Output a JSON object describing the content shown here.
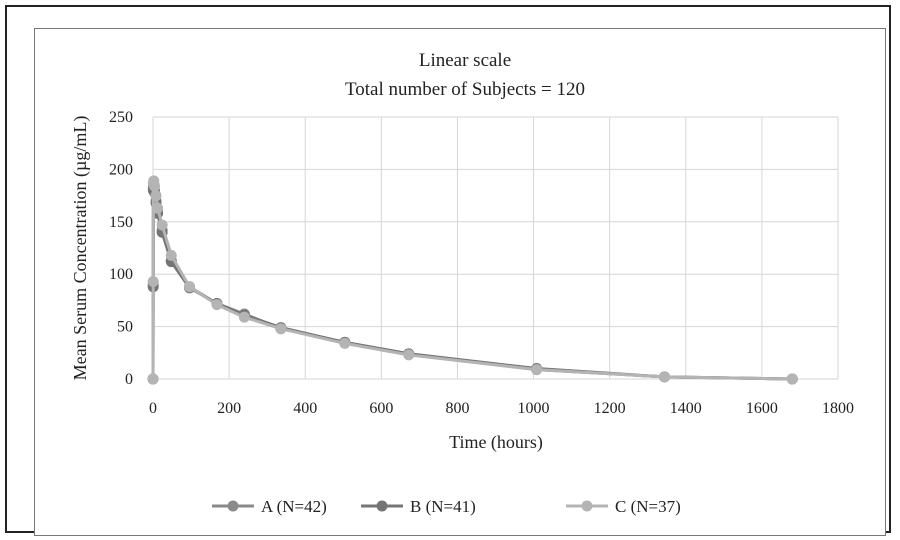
{
  "chart_data": {
    "type": "line",
    "title": "Linear scale",
    "subtitle": "Total number of Subjects = 120",
    "xlabel": "Time (hours)",
    "ylabel": "Mean Serum Concentration (µg/mL)",
    "xlim": [
      0,
      1800
    ],
    "ylim": [
      0,
      250
    ],
    "x_ticks": [
      0,
      200,
      400,
      600,
      800,
      1000,
      1200,
      1400,
      1600,
      1800
    ],
    "y_ticks": [
      0,
      50,
      100,
      150,
      200,
      250
    ],
    "grid": "vertical and horizontal",
    "legend_position": "bottom",
    "series": [
      {
        "name": "A (N=42)",
        "color": "#8a8a8a",
        "x": [
          0,
          0.5,
          1,
          2,
          4,
          8,
          12,
          24,
          48,
          96,
          168,
          240,
          336,
          504,
          672,
          1008,
          1344,
          1680
        ],
        "y": [
          0,
          90,
          182,
          186,
          180,
          170,
          160,
          142,
          113,
          88,
          72,
          62,
          48,
          35,
          24,
          9,
          2,
          0
        ]
      },
      {
        "name": "B (N=41)",
        "color": "#757575",
        "x": [
          0,
          0.5,
          1,
          2,
          4,
          8,
          12,
          24,
          48,
          96,
          168,
          240,
          336,
          504,
          672,
          1008,
          1344,
          1680
        ],
        "y": [
          0,
          88,
          180,
          184,
          178,
          168,
          158,
          140,
          112,
          87,
          72,
          61,
          49,
          35,
          24,
          10,
          2,
          0
        ]
      },
      {
        "name": "C (N=37)",
        "color": "#b4b4b4",
        "x": [
          0,
          0.5,
          1,
          2,
          4,
          8,
          12,
          24,
          48,
          96,
          168,
          240,
          336,
          504,
          672,
          1008,
          1344,
          1680
        ],
        "y": [
          0,
          93,
          187,
          189,
          184,
          175,
          163,
          147,
          118,
          88,
          71,
          59,
          48,
          34,
          23,
          9,
          2,
          0
        ]
      }
    ]
  }
}
